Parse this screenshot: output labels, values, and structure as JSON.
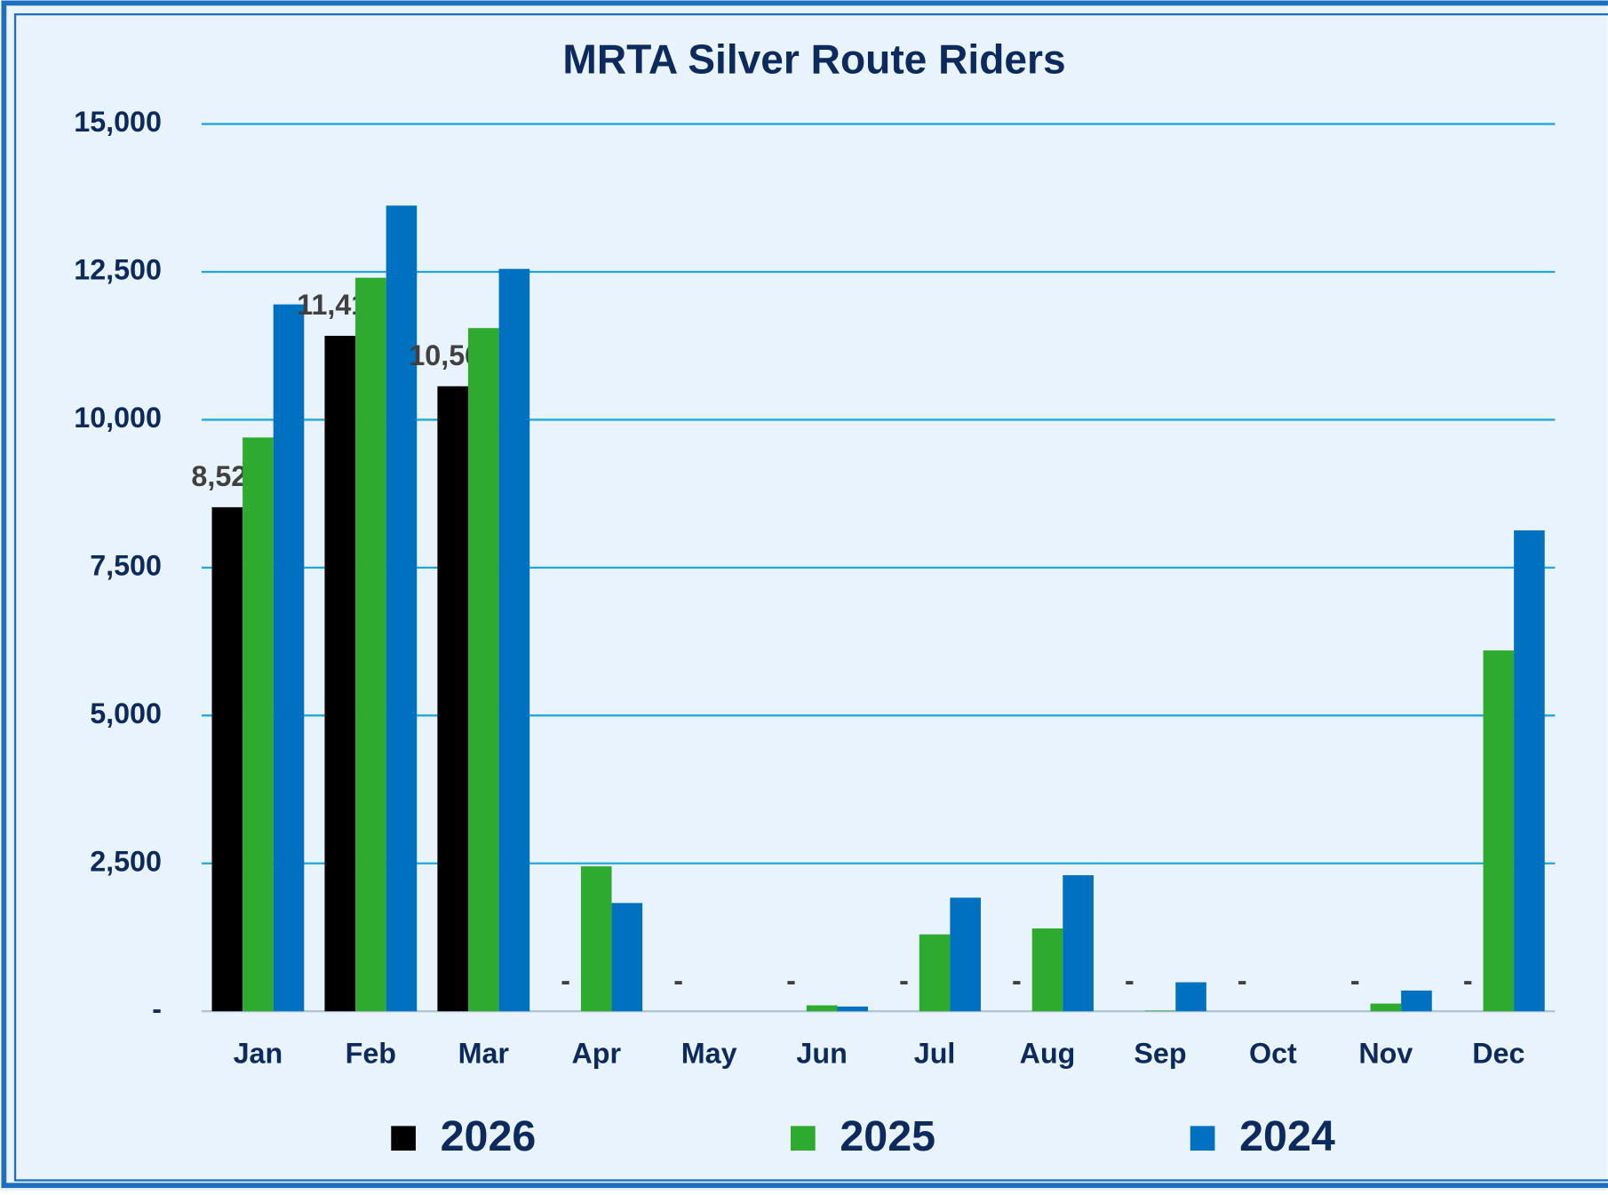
{
  "chart_data": {
    "type": "bar",
    "title": "MRTA Silver Route Riders",
    "categories": [
      "Jan",
      "Feb",
      "Mar",
      "Apr",
      "May",
      "Jun",
      "Jul",
      "Aug",
      "Sep",
      "Oct",
      "Nov",
      "Dec"
    ],
    "series": [
      {
        "name": "2026",
        "color": "#000000",
        "values": [
          8521,
          11419,
          10566,
          0,
          0,
          0,
          0,
          0,
          0,
          0,
          0,
          0
        ],
        "value_labels": [
          "8,521",
          "11,419",
          "10,566",
          "-",
          "-",
          "-",
          "-",
          "-",
          "-",
          "-",
          "-",
          "-"
        ]
      },
      {
        "name": "2025",
        "color": "#2eaa2e",
        "values": [
          9700,
          12400,
          11550,
          2450,
          0,
          100,
          1300,
          1400,
          10,
          0,
          130,
          6100
        ]
      },
      {
        "name": "2024",
        "color": "#0070c0",
        "values": [
          11950,
          13620,
          12550,
          1830,
          0,
          80,
          1920,
          2300,
          490,
          0,
          350,
          8130
        ]
      }
    ],
    "ylim": [
      0,
      15000
    ],
    "yticks": [
      {
        "value": 0,
        "label": "-"
      },
      {
        "value": 2500,
        "label": "2,500"
      },
      {
        "value": 5000,
        "label": "5,000"
      },
      {
        "value": 7500,
        "label": "7,500"
      },
      {
        "value": 10000,
        "label": "10,000"
      },
      {
        "value": 12500,
        "label": "12,500"
      },
      {
        "value": 15000,
        "label": "15,000"
      }
    ],
    "grid": true,
    "legend": "bottom"
  }
}
